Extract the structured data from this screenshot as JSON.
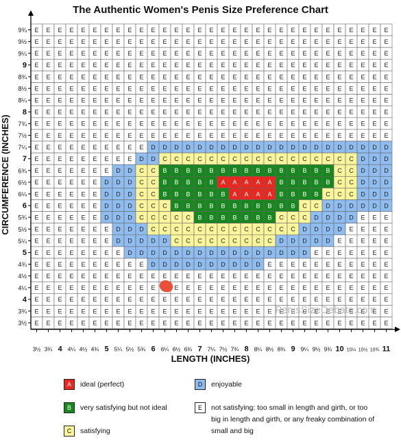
{
  "chart_data": {
    "type": "heatmap",
    "title": "The Authentic Women's Penis Size Preference Chart",
    "xlabel": "LENGTH  (INCHES)",
    "ylabel": "CIRCUMFERENCE (INCHES)",
    "watermark": "PenisSizeDebate.com",
    "x_tick_labels": [
      "3½",
      "3¾",
      "4",
      "4¼",
      "4½",
      "4¾",
      "5",
      "5¼",
      "5½",
      "5¾",
      "6",
      "6¼",
      "6½",
      "6¾",
      "7",
      "7¼",
      "7½",
      "7¾",
      "8",
      "8¼",
      "8½",
      "8¾",
      "9",
      "9¼",
      "9½",
      "9¾",
      "10",
      "10¼",
      "10½",
      "10¾",
      "11"
    ],
    "x_tick_bold": [
      "4",
      "5",
      "6",
      "7",
      "8",
      "9",
      "10",
      "11"
    ],
    "y_tick_labels": [
      "9¾",
      "9½",
      "9¼",
      "9",
      "8¾",
      "8½",
      "8¼",
      "8",
      "7¾",
      "7½",
      "7¼",
      "7",
      "6¾",
      "6½",
      "6¼",
      "6",
      "5¾",
      "5½",
      "5¼",
      "5",
      "4¾",
      "4½",
      "4¼",
      "4",
      "3¾",
      "3½"
    ],
    "y_tick_bold": [
      "9",
      "8",
      "7",
      "6",
      "5",
      "4"
    ],
    "grid_rows": [
      "EEEEEEEEEEEEEEEEEEEEEEEEEEEEEEE",
      "EEEEEEEEEEEEEEEEEEEEEEEEEEEEEEE",
      "EEEEEEEEEEEEEEEEEEEEEEEEEEEEEEE",
      "EEEEEEEEEEEEEEEEEEEEEEEEEEEEEEE",
      "EEEEEEEEEEEEEEEEEEEEEEEEEEEEEEE",
      "EEEEEEEEEEEEEEEEEEEEEEEEEEEEEEE",
      "EEEEEEEEEEEEEEEEEEEEEEEEEEEEEEE",
      "EEEEEEEEEEEEEEEEEEEEEEEEEEEEEEE",
      "EEEEEEEEEEEEEEEEEEEEEEEEEEEEEEE",
      "EEEEEEEEEEEEEEEEEEEEEEEEEEEEEEE",
      "EEEEEEEEEEDDDDDDDDDDDDDDDDDDDDD",
      "EEEEEEEEEDDCCCCCCCCCCCCCCCCCDDD",
      "EEEEEEEDDCCBBBBBBBBBBBBBBBCCDDD",
      "EEEEEEDDDCCBBBBBAAAAABBBBBCCDDD",
      "EEEEEEDDDCCBBBBBBAAAABBBBCCCDDD",
      "EEEEEEDDDCCCBBBBBBBBBBBCCDDDDDD",
      "EEEEEEDDDCCCCCBBBBBBBCCCDDDDEEE",
      "EEEEEEEDDDCCCCCCCCCCCCCDDDDEEEE",
      "EEEEEEEDDDDDCCCCCCCCCDDDDDEEEEE",
      "EEEEEEEEDDDDDDDDDDDDDDDDEEEEEEE",
      "EEEEEEEEEEDDDDDDDDDDEEEEEEEEEEE",
      "EEEEEEEEEEEEEEEEEEEEEEEEEEEEEEE",
      "EEEEEEEEEEEEEEEEEEEEEEEEEEEEEEE",
      "EEEEEEEEEEEEEEEEEEEEEEEEEEEEEEE",
      "EEEEEEEEEEEEEEEEEEEEEEEEEEEEEEE",
      "EEEEEEEEEEEEEEEEEEEEEEEEEEEEEEE"
    ],
    "categories": [
      {
        "code": "A",
        "label": "ideal (perfect)",
        "color": "#e8271f"
      },
      {
        "code": "B",
        "label": "very satisfying but not ideal",
        "color": "#19871f"
      },
      {
        "code": "C",
        "label": "satisfying",
        "color": "#fbf59c"
      },
      {
        "code": "D",
        "label": "enjoyable",
        "color": "#90bdf0"
      },
      {
        "code": "E",
        "label": "not satisfying: too small in length and girth, or too big in length and girth, or any freaky combination of small and big",
        "color": "#ffffff"
      }
    ],
    "marker": {
      "x": "6¼",
      "y": "4¼",
      "color": "#e8503a"
    }
  }
}
